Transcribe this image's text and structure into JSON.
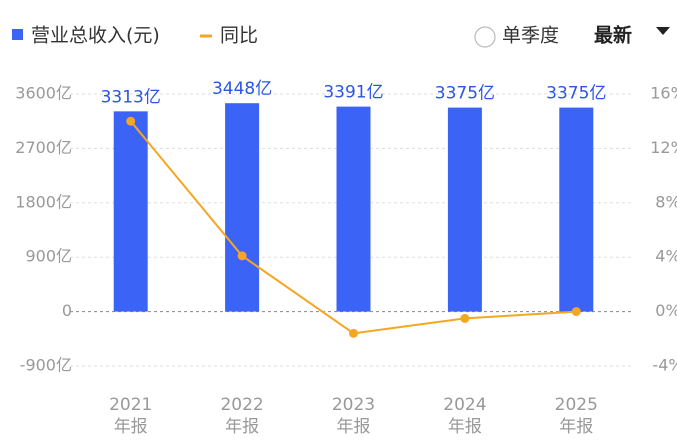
{
  "chart_data": {
    "type": "bar",
    "categories": [
      [
        "2021",
        "年报"
      ],
      [
        "2022",
        "年报"
      ],
      [
        "2023",
        "年报"
      ],
      [
        "2024",
        "年报"
      ],
      [
        "2025",
        "年报"
      ]
    ],
    "series": [
      {
        "name": "营业总收入(元)",
        "type": "bar",
        "color": "#3b63f6",
        "values": [
          3313,
          3448,
          3391,
          3375,
          3375
        ],
        "value_labels": [
          "3313亿",
          "3448亿",
          "3391亿",
          "3375亿",
          "3375亿"
        ]
      },
      {
        "name": "同比",
        "type": "line",
        "axis": "y2",
        "color": "#f5a623",
        "values": [
          14.0,
          4.1,
          -1.6,
          -0.5,
          0.0
        ]
      }
    ],
    "ylim": [
      -900,
      3600
    ],
    "yticks": [
      {
        "value": -900,
        "label": "-900亿"
      },
      0,
      {
        "value": 900,
        "label": "900亿"
      },
      {
        "value": 1800,
        "label": "1800亿"
      },
      {
        "value": 2700,
        "label": "2700亿"
      },
      {
        "value": 3600,
        "label": "3600亿"
      }
    ],
    "y2lim": [
      -4,
      16
    ],
    "y2ticks": [
      {
        "value": -4,
        "label": "-4%"
      },
      {
        "value": 0,
        "label": "0%"
      },
      {
        "value": 4,
        "label": "4%"
      },
      {
        "value": 8,
        "label": "8%"
      },
      {
        "value": 12,
        "label": "12%"
      },
      {
        "value": 16,
        "label": "16%"
      }
    ],
    "grid": true,
    "controls": {
      "quarterly": "单季度",
      "period": "最新"
    }
  }
}
